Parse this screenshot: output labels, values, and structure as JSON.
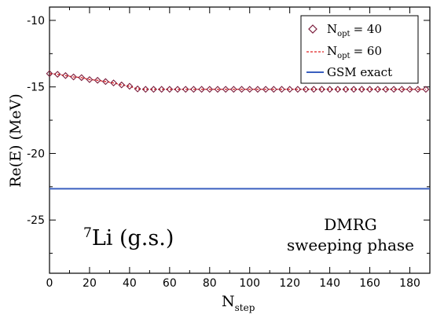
{
  "chart_data": {
    "type": "line",
    "title": "",
    "xlabel": "N",
    "xlabel_sub": "step",
    "ylabel": "Re(E) (MeV)",
    "xlim": [
      0,
      190
    ],
    "ylim": [
      -29,
      -9
    ],
    "xticks": [
      0,
      20,
      40,
      60,
      80,
      100,
      120,
      140,
      160,
      180
    ],
    "xtick_labels": [
      "0",
      "20",
      "40",
      "60",
      "80",
      "100",
      "120",
      "140",
      "160",
      "180"
    ],
    "yticks": [
      -10,
      -15,
      -20,
      -25
    ],
    "ytick_labels": [
      "-10",
      "-15",
      "-20",
      "-25"
    ],
    "grid": false,
    "legend_position": "top-right",
    "series": [
      {
        "name": "N_opt = 40",
        "label_main": "N",
        "label_sub": "opt",
        "label_value": "= 40",
        "style": "diamond-markers",
        "color": "#7a1a3a",
        "x": [
          0,
          4,
          8,
          12,
          16,
          20,
          24,
          28,
          32,
          36,
          40,
          44,
          48,
          52,
          56,
          60,
          64,
          68,
          72,
          76,
          80,
          84,
          88,
          92,
          96,
          100,
          104,
          108,
          112,
          116,
          120,
          124,
          128,
          132,
          136,
          140,
          144,
          148,
          152,
          156,
          160,
          164,
          168,
          172,
          176,
          180,
          184,
          188
        ],
        "values": [
          -14.0,
          -14.05,
          -14.15,
          -14.25,
          -14.3,
          -14.45,
          -14.5,
          -14.6,
          -14.7,
          -14.85,
          -14.95,
          -15.15,
          -15.18,
          -15.18,
          -15.18,
          -15.18,
          -15.18,
          -15.18,
          -15.18,
          -15.18,
          -15.18,
          -15.18,
          -15.18,
          -15.18,
          -15.18,
          -15.18,
          -15.18,
          -15.18,
          -15.18,
          -15.18,
          -15.18,
          -15.18,
          -15.18,
          -15.18,
          -15.18,
          -15.18,
          -15.18,
          -15.18,
          -15.18,
          -15.18,
          -15.18,
          -15.18,
          -15.18,
          -15.18,
          -15.18,
          -15.18,
          -15.18,
          -15.18
        ]
      },
      {
        "name": "N_opt = 60",
        "label_main": "N",
        "label_sub": "opt",
        "label_value": "= 60",
        "style": "dashed-red",
        "color": "#e02020",
        "x": [
          0,
          4,
          8,
          12,
          16,
          20,
          24,
          28,
          32,
          36,
          40,
          44,
          48,
          52,
          56,
          60,
          64,
          68,
          72,
          76,
          80,
          84,
          88,
          92,
          96,
          100,
          104,
          108,
          112,
          116,
          120,
          124,
          128,
          132,
          136,
          140,
          144,
          148,
          152,
          156,
          160,
          164,
          168,
          172,
          176,
          180,
          184,
          188
        ],
        "values": [
          -14.0,
          -14.05,
          -14.15,
          -14.25,
          -14.3,
          -14.45,
          -14.5,
          -14.6,
          -14.7,
          -14.85,
          -14.95,
          -15.15,
          -15.18,
          -15.18,
          -15.18,
          -15.18,
          -15.18,
          -15.18,
          -15.18,
          -15.18,
          -15.18,
          -15.18,
          -15.18,
          -15.18,
          -15.18,
          -15.18,
          -15.18,
          -15.18,
          -15.18,
          -15.18,
          -15.18,
          -15.18,
          -15.18,
          -15.18,
          -15.18,
          -15.18,
          -15.18,
          -15.18,
          -15.18,
          -15.18,
          -15.18,
          -15.18,
          -15.18,
          -15.18,
          -15.18,
          -15.18,
          -15.18,
          -15.18
        ]
      },
      {
        "name": "GSM exact",
        "label_main": "GSM exact",
        "style": "solid-blue",
        "color": "#3a5fbf",
        "x": [
          0,
          190
        ],
        "values": [
          -22.65,
          -22.65
        ]
      }
    ],
    "annotations": {
      "nucleus_sup": "7",
      "nucleus_text": "Li (g.s.)",
      "method_line1": "DMRG",
      "method_line2": "sweeping phase"
    }
  }
}
